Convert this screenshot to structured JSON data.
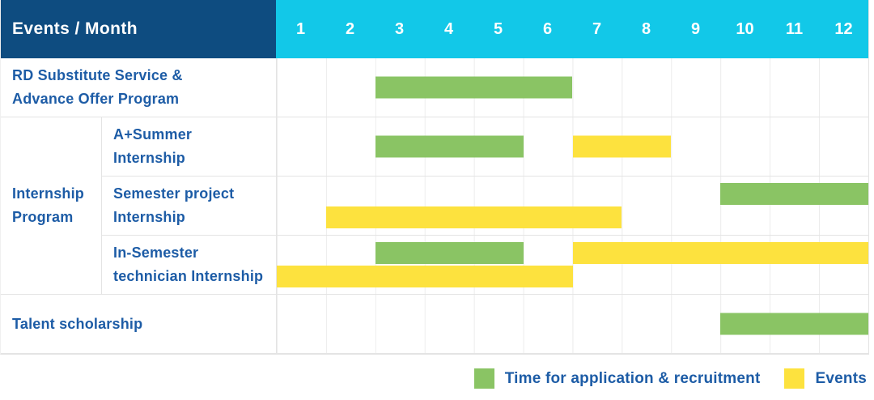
{
  "header": {
    "title": "Events / Month",
    "months": [
      "1",
      "2",
      "3",
      "4",
      "5",
      "6",
      "7",
      "8",
      "9",
      "10",
      "11",
      "12"
    ]
  },
  "colors": {
    "navy": "#0E4C80",
    "cyan": "#12C8E8",
    "green": "#8AC464",
    "yellow": "#FDE23E",
    "labelblue": "#1D5CA6",
    "grid": "#E4E4E4",
    "colline": "#ECECEC"
  },
  "rows": [
    {
      "type": "simple",
      "label_lines": [
        "RD Substitute Service &",
        "Advance Offer Program"
      ],
      "bars": [
        {
          "color": "green",
          "start": 3,
          "end": 6,
          "lane": "center"
        }
      ]
    },
    {
      "type": "group",
      "group_label_lines": [
        "Internship",
        "Program"
      ],
      "subrows": [
        {
          "label_lines": [
            "A+Summer",
            "Internship"
          ],
          "bars": [
            {
              "color": "green",
              "start": 3,
              "end": 5,
              "lane": "center"
            },
            {
              "color": "yellow",
              "start": 7,
              "end": 8,
              "lane": "center"
            }
          ]
        },
        {
          "label_lines": [
            "Semester project",
            "Internship"
          ],
          "bars": [
            {
              "color": "green",
              "start": 10,
              "end": 12,
              "lane": "top"
            },
            {
              "color": "yellow",
              "start": 2,
              "end": 7,
              "lane": "bottom"
            }
          ]
        },
        {
          "label_lines": [
            "In-Semester",
            "technician Internship"
          ],
          "bars": [
            {
              "color": "green",
              "start": 3,
              "end": 5,
              "lane": "top"
            },
            {
              "color": "yellow",
              "start": 7,
              "end": 12,
              "lane": "top"
            },
            {
              "color": "yellow",
              "start": 1,
              "end": 6,
              "lane": "bottom"
            }
          ]
        }
      ]
    },
    {
      "type": "simple",
      "label_lines": [
        "Talent scholarship"
      ],
      "bars": [
        {
          "color": "green",
          "start": 10,
          "end": 12,
          "lane": "center"
        }
      ]
    }
  ],
  "legend": [
    {
      "color": "green",
      "label": "Time for application & recruitment"
    },
    {
      "color": "yellow",
      "label": "Events"
    }
  ],
  "chart_data": {
    "type": "table",
    "subtype": "gantt",
    "title": "Events / Month",
    "x_categories": [
      1,
      2,
      3,
      4,
      5,
      6,
      7,
      8,
      9,
      10,
      11,
      12
    ],
    "legend": [
      "Time for application & recruitment",
      "Events"
    ],
    "tasks": [
      {
        "event": "RD Substitute Service & Advance Offer Program",
        "group": null,
        "spans": [
          {
            "kind": "Time for application & recruitment",
            "months": [
              3,
              6
            ]
          }
        ]
      },
      {
        "event": "A+Summer Internship",
        "group": "Internship Program",
        "spans": [
          {
            "kind": "Time for application & recruitment",
            "months": [
              3,
              5
            ]
          },
          {
            "kind": "Events",
            "months": [
              7,
              8
            ]
          }
        ]
      },
      {
        "event": "Semester project Internship",
        "group": "Internship Program",
        "spans": [
          {
            "kind": "Time for application & recruitment",
            "months": [
              10,
              12
            ]
          },
          {
            "kind": "Events",
            "months": [
              2,
              7
            ]
          }
        ]
      },
      {
        "event": "In-Semester technician Internship",
        "group": "Internship Program",
        "spans": [
          {
            "kind": "Time for application & recruitment",
            "months": [
              3,
              5
            ]
          },
          {
            "kind": "Events",
            "months": [
              7,
              12
            ]
          },
          {
            "kind": "Events",
            "months": [
              1,
              6
            ]
          }
        ]
      },
      {
        "event": "Talent scholarship",
        "group": null,
        "spans": [
          {
            "kind": "Time for application & recruitment",
            "months": [
              10,
              12
            ]
          }
        ]
      }
    ]
  }
}
